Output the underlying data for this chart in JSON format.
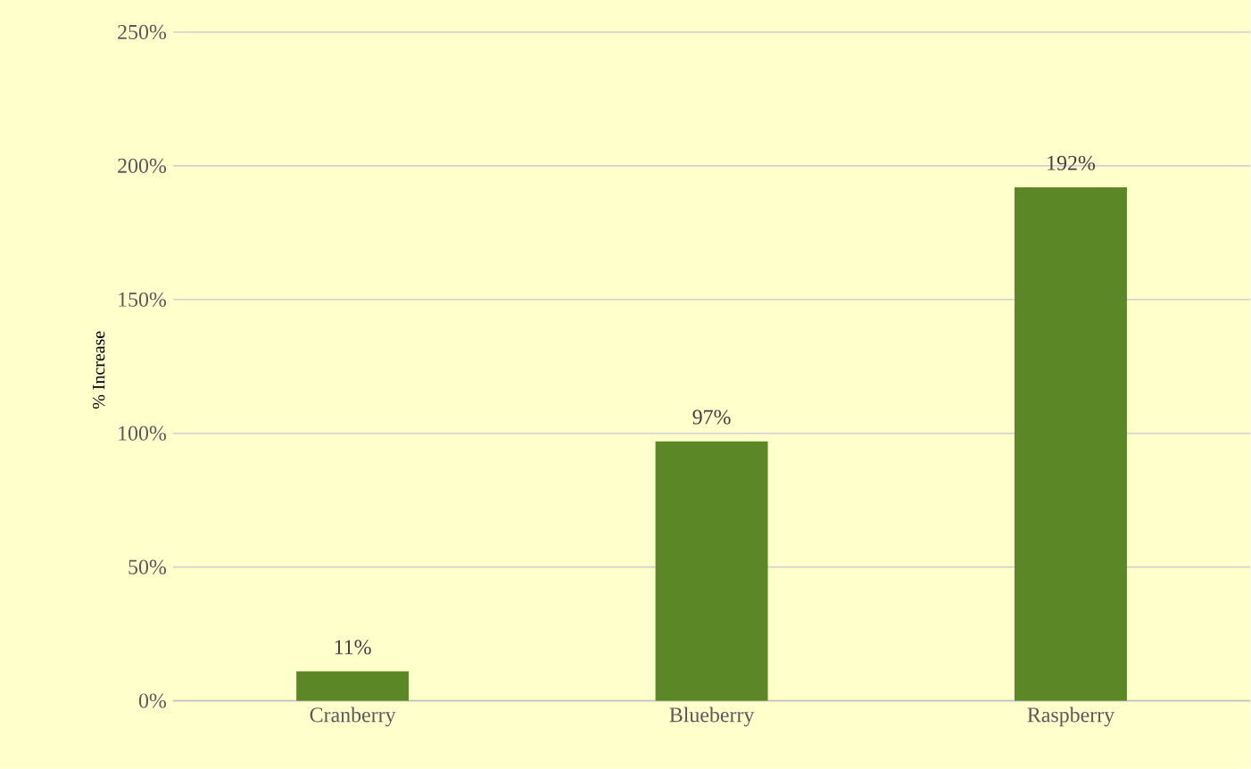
{
  "chart_data": {
    "type": "bar",
    "ylabel": "% Increase",
    "categories": [
      "Cranberry",
      "Blueberry",
      "Raspberry"
    ],
    "values": [
      11,
      97,
      192
    ],
    "value_labels": [
      "11%",
      "97%",
      "192%"
    ],
    "color": "#5b8726",
    "ylim": [
      0,
      250
    ],
    "yticks": [
      {
        "value": 0,
        "label": "0%"
      },
      {
        "value": 50,
        "label": "50%"
      },
      {
        "value": 100,
        "label": "100%"
      },
      {
        "value": 150,
        "label": "150%"
      },
      {
        "value": 200,
        "label": "200%"
      },
      {
        "value": 250,
        "label": "250%"
      }
    ],
    "grid": "y"
  }
}
